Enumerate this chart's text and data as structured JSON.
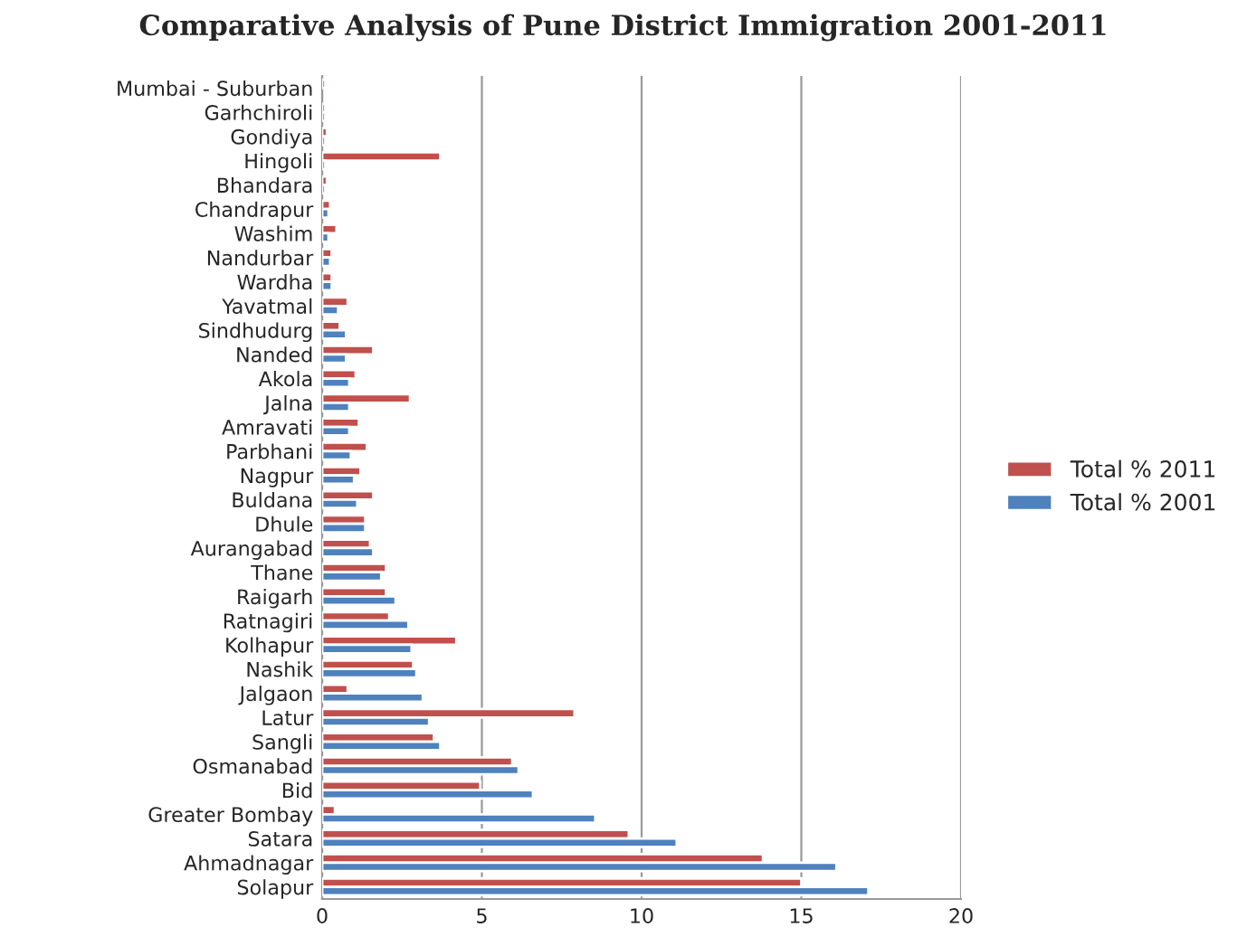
{
  "chart_data": {
    "type": "bar",
    "orientation": "horizontal",
    "title": "Comparative Analysis of Pune District Immigration 2001-2011",
    "categories": [
      "Mumbai - Suburban",
      "Garhchiroli",
      "Gondiya",
      "Hingoli",
      "Bhandara",
      "Chandrapur",
      "Washim",
      "Nandurbar",
      "Wardha",
      "Yavatmal",
      "Sindhudurg",
      "Nanded",
      "Akola",
      "Jalna",
      "Amravati",
      "Parbhani",
      "Nagpur",
      "Buldana",
      "Dhule",
      "Aurangabad",
      "Thane",
      "Raigarh",
      "Ratnagiri",
      "Kolhapur",
      "Nashik",
      "Jalgaon",
      "Latur",
      "Sangli",
      "Osmanabad",
      "Bid",
      "Greater Bombay",
      "Satara",
      "Ahmadnagar",
      "Solapur"
    ],
    "series": [
      {
        "name": "Total % 2011",
        "color": "#c0504d",
        "values": [
          0.1,
          0.1,
          0.15,
          3.7,
          0.15,
          0.25,
          0.45,
          0.3,
          0.3,
          0.8,
          0.55,
          1.6,
          1.05,
          2.75,
          1.15,
          1.4,
          1.2,
          1.6,
          1.35,
          1.5,
          2.0,
          2.0,
          2.1,
          4.2,
          2.85,
          0.8,
          7.9,
          3.5,
          5.95,
          4.95,
          0.4,
          9.6,
          13.8,
          15.0
        ]
      },
      {
        "name": "Total % 2001",
        "color": "#4f81bd",
        "values": [
          null,
          0.1,
          0.1,
          0.1,
          0.1,
          0.2,
          0.2,
          0.25,
          0.3,
          0.5,
          0.75,
          0.75,
          0.85,
          0.85,
          0.85,
          0.9,
          1.0,
          1.1,
          1.35,
          1.6,
          1.85,
          2.3,
          2.7,
          2.8,
          2.95,
          3.15,
          3.35,
          3.7,
          6.15,
          6.6,
          8.55,
          11.1,
          16.1,
          17.1
        ]
      }
    ],
    "xlim": [
      0,
      20
    ],
    "xticks": [
      0,
      5,
      10,
      15,
      20
    ],
    "grid": "x",
    "legend": "right"
  }
}
